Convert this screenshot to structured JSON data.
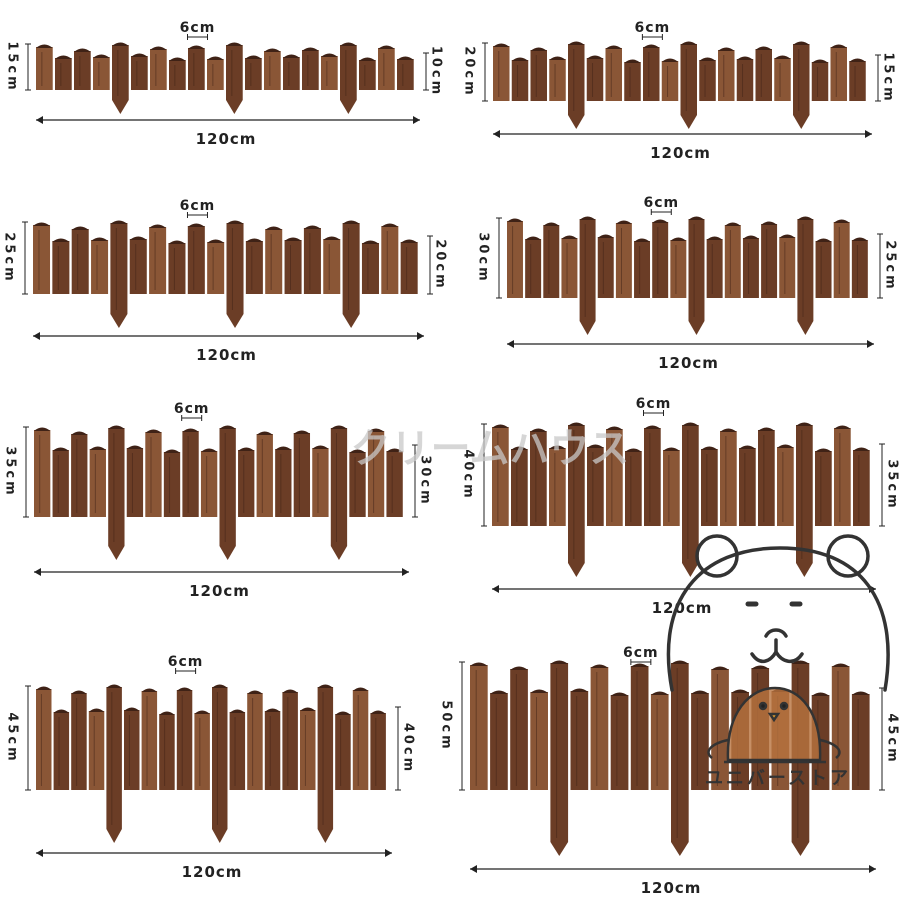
{
  "colors": {
    "wood": "#6b3d26",
    "wood_light": "#8a5636",
    "wood_dark": "#3f2216",
    "line": "#222222",
    "watermark": "#c8c8c8",
    "mascot": "#333333"
  },
  "fences": [
    {
      "name": "fence-15x10",
      "width_label": "120cm",
      "picket_label": "6cm",
      "tall_label": "15cm",
      "short_label": "10cm"
    },
    {
      "name": "fence-20x15",
      "width_label": "120cm",
      "picket_label": "6cm",
      "tall_label": "20cm",
      "short_label": "15cm"
    },
    {
      "name": "fence-25x20",
      "width_label": "120cm",
      "picket_label": "6cm",
      "tall_label": "25cm",
      "short_label": "20cm"
    },
    {
      "name": "fence-30x25",
      "width_label": "120cm",
      "picket_label": "6cm",
      "tall_label": "30cm",
      "short_label": "25cm"
    },
    {
      "name": "fence-35x30",
      "width_label": "120cm",
      "picket_label": "6cm",
      "tall_label": "35cm",
      "short_label": "30cm"
    },
    {
      "name": "fence-40x35",
      "width_label": "120cm",
      "picket_label": "6cm",
      "tall_label": "40cm",
      "short_label": "35cm"
    },
    {
      "name": "fence-45x40",
      "width_label": "120cm",
      "picket_label": "6cm",
      "tall_label": "45cm",
      "short_label": "40cm"
    },
    {
      "name": "fence-50x45",
      "width_label": "120cm",
      "picket_label": "6cm",
      "tall_label": "50cm",
      "short_label": "45cm"
    }
  ],
  "watermark": "クリームハウス",
  "store_logo_text": "ユニバーストア"
}
